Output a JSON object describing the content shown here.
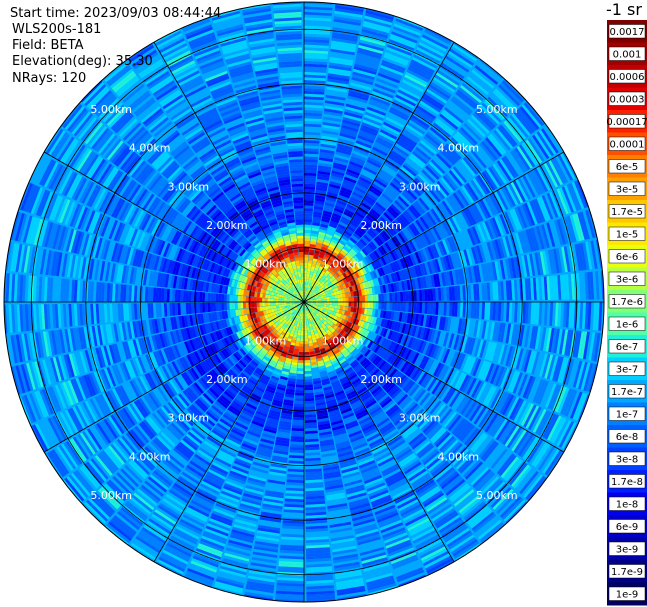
{
  "info": {
    "start_time": "Start time: 2023/09/03 08:44:44",
    "instrument": "WLS200s-181",
    "field": "Field: BETA",
    "elevation": "Elevation(deg): 35.30",
    "nrays": "NRays: 120"
  },
  "colorbar": {
    "unit_label": "-1 sr",
    "labels": [
      "0.0017",
      "0.001",
      "0.0006",
      "0.0003",
      "0.00017",
      "0.0001",
      "6e-5",
      "3e-5",
      "1.7e-5",
      "1e-5",
      "6e-6",
      "3e-6",
      "1.7e-6",
      "1e-6",
      "6e-7",
      "3e-7",
      "1.7e-7",
      "1e-7",
      "6e-8",
      "3e-8",
      "1.7e-8",
      "1e-8",
      "6e-9",
      "3e-9",
      "1.7e-9",
      "1e-9"
    ],
    "colors": [
      "#7f0000",
      "#a00000",
      "#c00000",
      "#e00000",
      "#ff2000",
      "#ff5000",
      "#ff8000",
      "#ffa000",
      "#ffc800",
      "#ffe800",
      "#e8ff10",
      "#b8ff40",
      "#80ff78",
      "#50ffa8",
      "#20f0d8",
      "#00d0ff",
      "#00a8ff",
      "#0080ff",
      "#0060ff",
      "#0040ff",
      "#0020ff",
      "#0000ee",
      "#0000c8",
      "#0000a8",
      "#000088",
      "#000060"
    ]
  },
  "chart_data": {
    "type": "heatmap",
    "projection": "polar-ppi",
    "field": "BETA",
    "elevation_deg": 35.3,
    "n_rays": 120,
    "range_km_max": 5.5,
    "range_rings_km": [
      1,
      2,
      3,
      4,
      5
    ],
    "ring_labels": [
      "1.00km",
      "2.00km",
      "3.00km",
      "4.00km",
      "5.00km"
    ],
    "spoke_azimuths_deg": [
      0,
      30,
      60,
      90,
      120,
      150,
      180,
      210,
      240,
      270,
      300,
      330
    ],
    "scale": "log",
    "value_range": [
      1e-09,
      0.0017
    ],
    "radial_profile": [
      {
        "range_km": 0.0,
        "beta": 2e-06
      },
      {
        "range_km": 0.6,
        "beta": 3e-06
      },
      {
        "range_km": 0.95,
        "beta": 0.0006
      },
      {
        "range_km": 1.2,
        "beta": 1e-06
      },
      {
        "range_km": 1.5,
        "beta": 3e-08
      },
      {
        "range_km": 2.0,
        "beta": 1.7e-08
      },
      {
        "range_km": 3.0,
        "beta": 1e-07
      },
      {
        "range_km": 4.0,
        "beta": 1e-07
      },
      {
        "range_km": 5.0,
        "beta": 1.7e-07
      },
      {
        "range_km": 5.5,
        "beta": 1e-07
      }
    ]
  }
}
